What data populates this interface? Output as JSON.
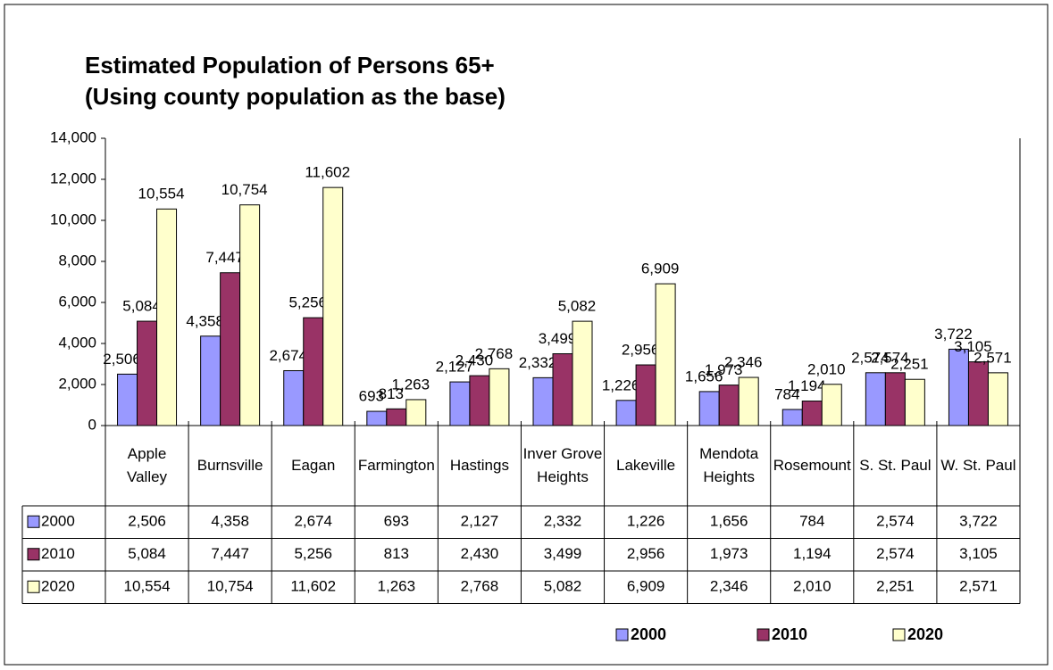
{
  "chart_data": {
    "type": "bar",
    "title": "Estimated Population of Persons 65+",
    "subtitle": "(Using county population as the base)",
    "categories": [
      "Apple Valley",
      "Burnsville",
      "Eagan",
      "Farmington",
      "Hastings",
      "Inver Grove Heights",
      "Lakeville",
      "Mendota Heights",
      "Rosemount",
      "S. St. Paul",
      "W. St. Paul"
    ],
    "series": [
      {
        "name": "2000",
        "color": "#9999ff",
        "values": [
          2506,
          4358,
          2674,
          693,
          2127,
          2332,
          1226,
          1656,
          784,
          2574,
          3722
        ],
        "value_labels": [
          "2,506",
          "4,358",
          "2,674",
          "693",
          "2,127",
          "2,332",
          "1,226",
          "1,656",
          "784",
          "2,574",
          "3,722"
        ]
      },
      {
        "name": "2010",
        "color": "#993366",
        "values": [
          5084,
          7447,
          5256,
          813,
          2430,
          3499,
          2956,
          1973,
          1194,
          2574,
          3105
        ],
        "value_labels": [
          "5,084",
          "7,447",
          "5,256",
          "813",
          "2,430",
          "3,499",
          "2,956",
          "1,973",
          "1,194",
          "2,574",
          "3,105"
        ]
      },
      {
        "name": "2020",
        "color": "#ffffcc",
        "values": [
          10554,
          10754,
          11602,
          1263,
          2768,
          5082,
          6909,
          2346,
          2010,
          2251,
          2571
        ],
        "value_labels": [
          "10,554",
          "10,754",
          "11,602",
          "1,263",
          "2,768",
          "5,082",
          "6,909",
          "2,346",
          "2,010",
          "2,251",
          "2,571"
        ]
      }
    ],
    "ylim": [
      0,
      14000
    ],
    "yticks": [
      0,
      {
        "value": 2000,
        "label": "2,000"
      },
      {
        "value": 4000,
        "label": "4,000"
      },
      {
        "value": 6000,
        "label": "6,000"
      },
      {
        "value": 8000,
        "label": "8,000"
      },
      {
        "value": 10000,
        "label": "10,000"
      },
      {
        "value": 12000,
        "label": "12,000"
      },
      {
        "value": 14000,
        "label": "14,000"
      }
    ],
    "grid": false,
    "legend": "bottom"
  }
}
